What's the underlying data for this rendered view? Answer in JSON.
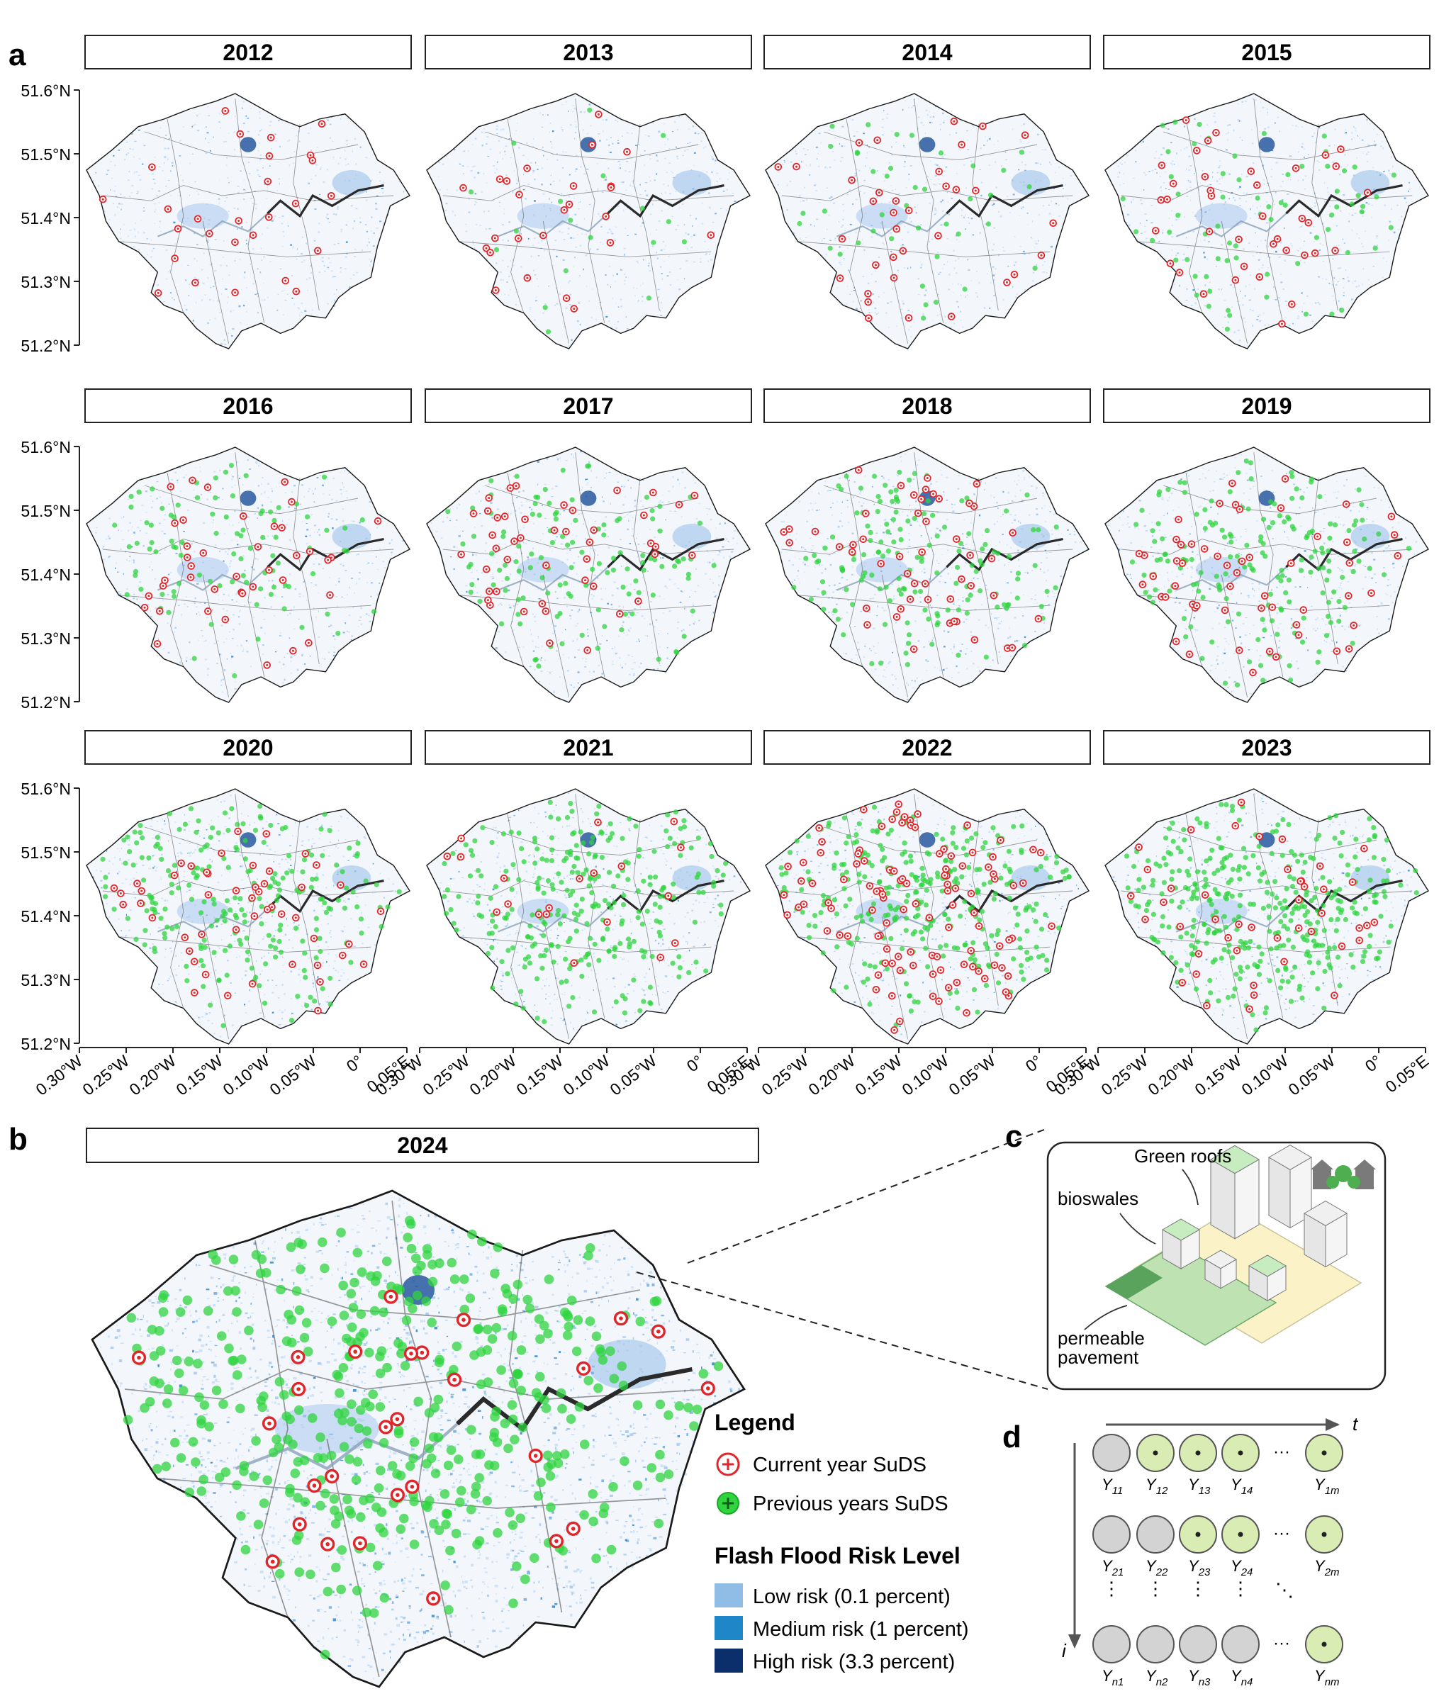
{
  "panels": {
    "a": {
      "label": "a",
      "years": [
        "2012",
        "2013",
        "2014",
        "2015",
        "2016",
        "2017",
        "2018",
        "2019",
        "2020",
        "2021",
        "2022",
        "2023"
      ],
      "y_ticks": [
        "51.6°N",
        "51.5°N",
        "51.4°N",
        "51.3°N",
        "51.2°N"
      ],
      "x_ticks": [
        "0.30°W",
        "0.25°W",
        "0.20°W",
        "0.15°W",
        "0.10°W",
        "0.05°W",
        "0°",
        "0.05°E"
      ]
    },
    "b": {
      "label": "b",
      "year": "2024"
    },
    "c": {
      "label": "c",
      "labels": {
        "green_roofs": "Green roofs",
        "bioswales": "bioswales",
        "permeable_1": "permeable",
        "permeable_2": "pavement"
      }
    },
    "d": {
      "label": "d",
      "axis_t": "t",
      "axis_i": "i",
      "dots": "···",
      "vdots": "⋮",
      "ddots": "⋱",
      "rows": [
        {
          "nodes": [
            {
              "sub": "11",
              "state": "grey"
            },
            {
              "sub": "12",
              "state": "green"
            },
            {
              "sub": "13",
              "state": "green"
            },
            {
              "sub": "14",
              "state": "green"
            },
            {
              "sub": "1m",
              "state": "green"
            }
          ]
        },
        {
          "nodes": [
            {
              "sub": "21",
              "state": "grey"
            },
            {
              "sub": "22",
              "state": "grey"
            },
            {
              "sub": "23",
              "state": "green"
            },
            {
              "sub": "24",
              "state": "green"
            },
            {
              "sub": "2m",
              "state": "green"
            }
          ]
        },
        {
          "nodes": [
            {
              "sub": "n1",
              "state": "grey"
            },
            {
              "sub": "n2",
              "state": "grey"
            },
            {
              "sub": "n3",
              "state": "grey"
            },
            {
              "sub": "n4",
              "state": "grey"
            },
            {
              "sub": "nm",
              "state": "green"
            }
          ]
        }
      ],
      "symbol": "Y"
    }
  },
  "legend": {
    "title": "Legend",
    "current": "Current year SuDS",
    "previous": "Previous years SuDS",
    "risk_title": "Flash Flood Risk Level",
    "risk_items": [
      {
        "label": "Low risk (0.1 percent)",
        "color": "#8fbde6"
      },
      {
        "label": "Medium risk (1 percent)",
        "color": "#1f86c8"
      },
      {
        "label": "High risk (3.3 percent)",
        "color": "#0b2f6b"
      }
    ]
  },
  "colors": {
    "current_suds": "#e0262b",
    "previous_suds": "#2fd43f",
    "node_green": "#d9ecb4",
    "node_grey": "#d3d3d3"
  },
  "suds_counts": {
    "2012": {
      "current": 27,
      "previous": 0
    },
    "2013": {
      "current": 25,
      "previous": 18
    },
    "2014": {
      "current": 35,
      "previous": 40
    },
    "2015": {
      "current": 38,
      "previous": 70
    },
    "2016": {
      "current": 40,
      "previous": 90
    },
    "2017": {
      "current": 45,
      "previous": 120
    },
    "2018": {
      "current": 50,
      "previous": 150
    },
    "2019": {
      "current": 55,
      "previous": 180
    },
    "2020": {
      "current": 50,
      "previous": 230
    },
    "2021": {
      "current": 20,
      "previous": 290
    },
    "2022": {
      "current": 110,
      "previous": 320
    },
    "2023": {
      "current": 45,
      "previous": 380
    },
    "2024": {
      "current": 28,
      "previous": 420
    }
  }
}
